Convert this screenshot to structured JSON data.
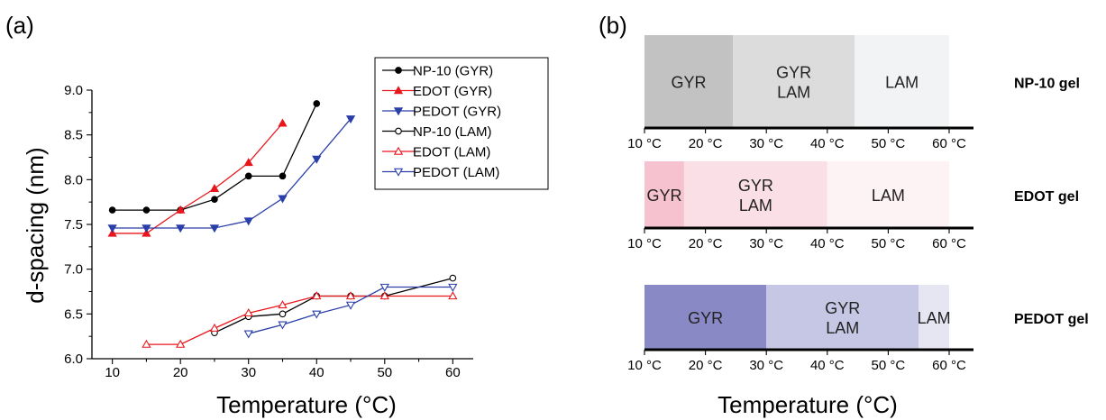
{
  "panel_a": {
    "label": "(a)",
    "xlabel": "Temperature (°C)",
    "ylabel": "d-spacing (nm)"
  },
  "panel_b": {
    "label": "(b)",
    "xlabel": "Temperature (°C)"
  },
  "chart_data": [
    {
      "type": "line",
      "xlabel": "Temperature (°C)",
      "ylabel": "d-spacing (nm)",
      "xlim": [
        7,
        63
      ],
      "ylim": [
        6.0,
        9.0
      ],
      "xticks": [
        10,
        15,
        20,
        25,
        30,
        35,
        40,
        45,
        50,
        55,
        60
      ],
      "yticks": [
        6.0,
        6.5,
        7.0,
        7.5,
        8.0,
        8.5,
        9.0
      ],
      "legend": "top-right",
      "series": [
        {
          "name": "NP-10 (GYR)",
          "color": "#000000",
          "marker": "circle",
          "filled": true,
          "x": [
            10,
            15,
            20,
            25,
            30,
            35,
            40
          ],
          "y": [
            7.66,
            7.66,
            7.66,
            7.78,
            8.04,
            8.04,
            8.85
          ]
        },
        {
          "name": "EDOT (GYR)",
          "color": "#e8171c",
          "marker": "triangle-up",
          "filled": true,
          "x": [
            10,
            15,
            20,
            25,
            30,
            35
          ],
          "y": [
            7.4,
            7.4,
            7.66,
            7.9,
            8.19,
            8.63
          ]
        },
        {
          "name": "PEDOT (GYR)",
          "color": "#2b3fa8",
          "marker": "triangle-down",
          "filled": true,
          "x": [
            10,
            15,
            20,
            25,
            30,
            35,
            40,
            45
          ],
          "y": [
            7.46,
            7.46,
            7.46,
            7.46,
            7.54,
            7.79,
            8.23,
            8.68
          ]
        },
        {
          "name": "NP-10 (LAM)",
          "color": "#000000",
          "marker": "circle",
          "filled": false,
          "x": [
            25,
            30,
            35,
            40,
            45,
            50,
            60
          ],
          "y": [
            6.29,
            6.47,
            6.5,
            6.7,
            6.7,
            6.7,
            6.9
          ]
        },
        {
          "name": "EDOT (LAM)",
          "color": "#e8171c",
          "marker": "triangle-up",
          "filled": false,
          "x": [
            15,
            20,
            25,
            30,
            35,
            40,
            45,
            50,
            60
          ],
          "y": [
            6.16,
            6.16,
            6.34,
            6.51,
            6.6,
            6.7,
            6.7,
            6.7,
            6.7
          ]
        },
        {
          "name": "PEDOT (LAM)",
          "color": "#2b3fa8",
          "marker": "triangle-down",
          "filled": false,
          "x": [
            30,
            35,
            40,
            45,
            50,
            60
          ],
          "y": [
            6.28,
            6.38,
            6.5,
            6.6,
            6.8,
            6.8
          ]
        }
      ]
    },
    {
      "type": "bar",
      "orientation": "horizontal-timeline",
      "xlabel": "Temperature (°C)",
      "xlim": [
        10,
        60
      ],
      "xticks": [
        10,
        20,
        30,
        40,
        50,
        60
      ],
      "xtick_labels": [
        "10 °C",
        "20 °C",
        "30 °C",
        "40 °C",
        "50 °C",
        "60 °C"
      ],
      "rows": [
        {
          "label": "NP-10 gel",
          "segments": [
            {
              "phase": "GYR",
              "from": 10,
              "to": 24.5,
              "color": "#c2c2c2"
            },
            {
              "phase": "GYR LAM",
              "from": 24.5,
              "to": 44.5,
              "color": "#dcdcdc"
            },
            {
              "phase": "LAM",
              "from": 44.5,
              "to": 60,
              "color": "#f2f3f5"
            }
          ]
        },
        {
          "label": "EDOT gel",
          "segments": [
            {
              "phase": "GYR",
              "from": 10,
              "to": 16.5,
              "color": "#f6c2cf"
            },
            {
              "phase": "GYR LAM",
              "from": 16.5,
              "to": 40,
              "color": "#fae0e6"
            },
            {
              "phase": "LAM",
              "from": 40,
              "to": 60,
              "color": "#fdf2f4"
            }
          ]
        },
        {
          "label": "PEDOT gel",
          "segments": [
            {
              "phase": "GYR",
              "from": 10,
              "to": 30,
              "color": "#8889c5"
            },
            {
              "phase": "GYR LAM",
              "from": 30,
              "to": 55,
              "color": "#c6c7e4"
            },
            {
              "phase": "LAM",
              "from": 55,
              "to": 60,
              "color": "#e6e6f3"
            }
          ]
        }
      ]
    }
  ]
}
